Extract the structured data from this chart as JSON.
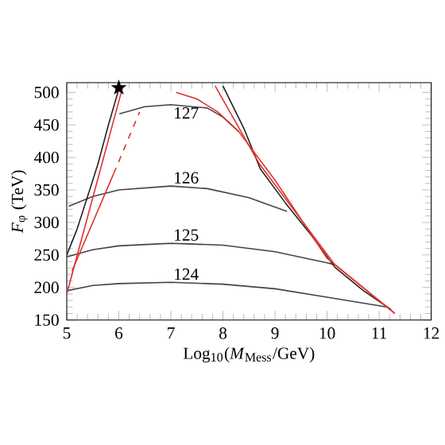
{
  "chart_data": {
    "type": "line",
    "xlabel": "Log$_{10}$(*M*$_{Mess}$/GeV)",
    "ylabel": "*F*$_{φ}$ (TeV)",
    "xlim": [
      5,
      12
    ],
    "ylim": [
      150,
      515
    ],
    "xticks": [
      5,
      6,
      7,
      8,
      9,
      10,
      11,
      12
    ],
    "yticks": [
      150,
      200,
      250,
      300,
      350,
      400,
      450,
      500
    ],
    "grid": false,
    "legend": false,
    "series": [
      {
        "name": "124",
        "color": "#444444",
        "x": [
          5,
          5.5,
          6,
          7,
          8,
          9,
          10,
          11,
          11.13
        ],
        "values": [
          195,
          203,
          206,
          208,
          205,
          198,
          185,
          172,
          170
        ]
      },
      {
        "name": "125",
        "color": "#444444",
        "x": [
          5,
          5.5,
          6,
          7,
          8,
          9,
          10,
          10.15
        ],
        "values": [
          247,
          258,
          264,
          268,
          265,
          255,
          238,
          235
        ]
      },
      {
        "name": "126",
        "color": "#444444",
        "x": [
          5.04,
          5.5,
          6,
          7,
          7.7,
          8.5,
          9.23
        ],
        "values": [
          325,
          340,
          350,
          356,
          352,
          338,
          317
        ]
      },
      {
        "name": "127",
        "color": "#444444",
        "x": [
          6.01,
          6.5,
          7,
          7.7,
          8.0,
          8.3
        ],
        "values": [
          467,
          478,
          481,
          476,
          462,
          440
        ]
      },
      {
        "color": "#222222",
        "x": [
          5,
          5.2,
          5.4,
          5.6,
          5.8,
          6.0
        ],
        "values": [
          250,
          290,
          340,
          390,
          450,
          505
        ]
      },
      {
        "color": "#222222",
        "x": [
          8.0,
          8.4,
          8.72,
          9.2,
          9.7,
          10.15,
          10.7,
          11.23
        ],
        "values": [
          510,
          445,
          382,
          330,
          280,
          231,
          195,
          166
        ]
      },
      {
        "color": "#e03030",
        "x": [
          5.0,
          6.08
        ],
        "values": [
          190,
          510
        ]
      },
      {
        "color": "#e03030",
        "x": [
          5.1,
          5.9
        ],
        "values": [
          225,
          375
        ]
      },
      {
        "color": "#e03030",
        "line_style": "dashed",
        "x": [
          5.9,
          6.4
        ],
        "values": [
          375,
          470
        ]
      },
      {
        "color": "#e03030",
        "x": [
          7.85,
          8.7,
          10.15,
          11.3
        ],
        "values": [
          510,
          390,
          235,
          160
        ]
      },
      {
        "color": "#e03030",
        "x": [
          7.1,
          7.5,
          7.9,
          8.3,
          9.0,
          10.0,
          11.3
        ],
        "values": [
          500,
          490,
          470,
          440,
          365,
          245,
          160
        ]
      },
      {
        "type": "scatter",
        "marker": "star",
        "color": "#000000",
        "x": [
          6.0
        ],
        "values": [
          507
        ]
      }
    ]
  }
}
